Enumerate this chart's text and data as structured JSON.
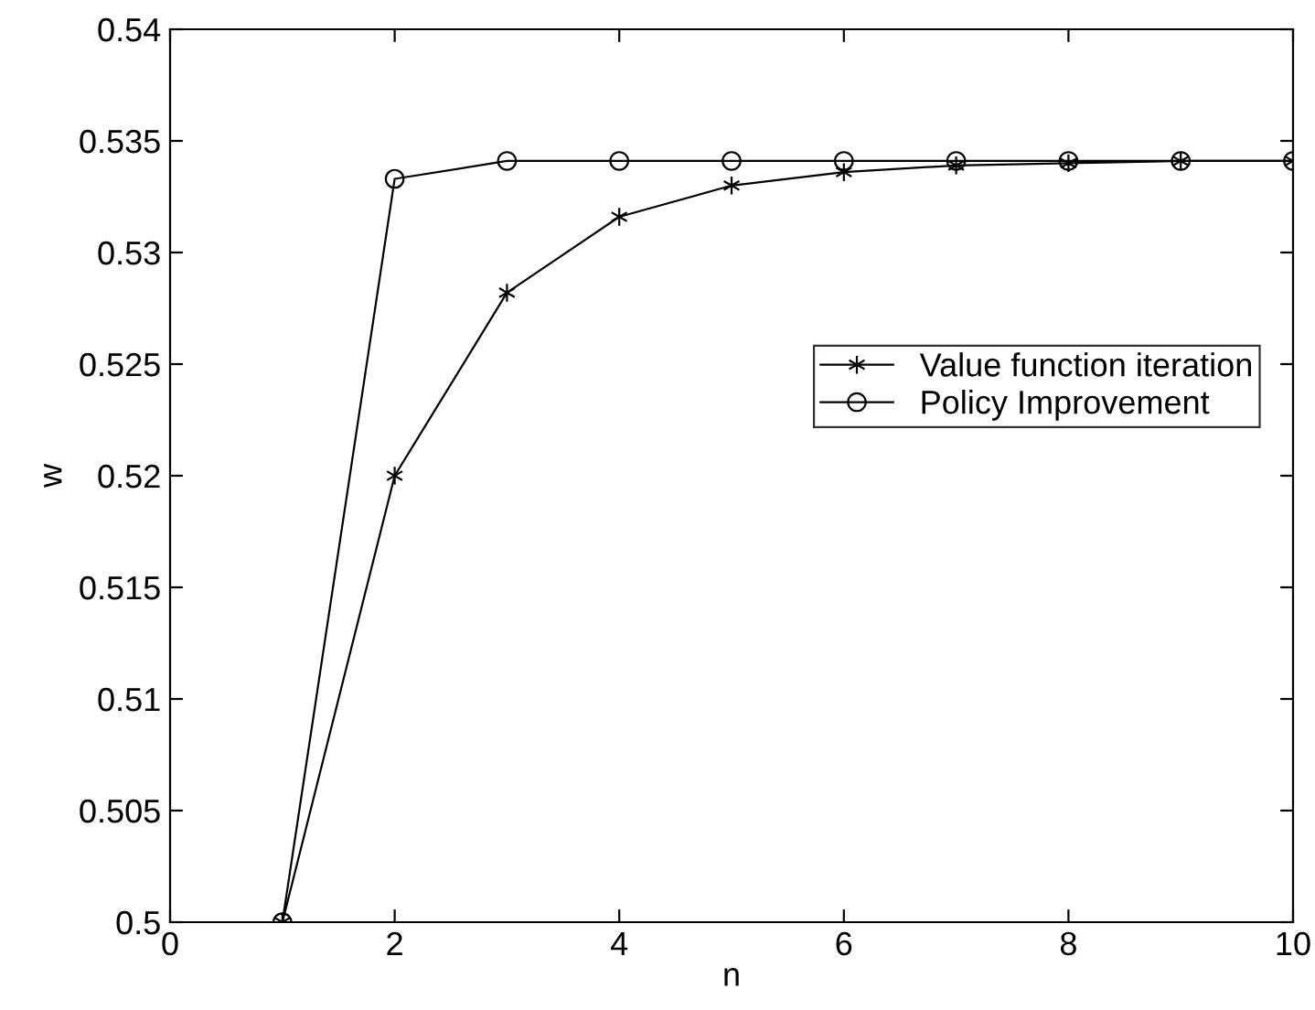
{
  "chart_data": {
    "type": "line",
    "xlabel": "n",
    "ylabel": "w",
    "x": [
      1,
      2,
      3,
      4,
      5,
      6,
      7,
      8,
      9,
      10
    ],
    "series": [
      {
        "name": "Value function iteration",
        "color": "#000000",
        "marker": "cross",
        "values": [
          0.5,
          0.52,
          0.5282,
          0.5316,
          0.533,
          0.5336,
          0.5339,
          0.534,
          0.5341,
          0.5341
        ]
      },
      {
        "name": "Policy Improvement",
        "color": "#000000",
        "marker": "circle",
        "values": [
          0.5,
          0.5333,
          0.5341,
          0.5341,
          0.5341,
          0.5341,
          0.5341,
          0.5341,
          0.5341,
          0.5341
        ]
      }
    ],
    "xlim": [
      0,
      10
    ],
    "xticks": [
      0,
      2,
      4,
      6,
      8,
      10
    ],
    "ylim": [
      0.5,
      0.54
    ],
    "yticks": [
      0.5,
      0.505,
      0.51,
      0.515,
      0.52,
      0.525,
      0.53,
      0.535,
      0.54
    ],
    "grid": false,
    "legend": "right",
    "line_style": "solid"
  }
}
